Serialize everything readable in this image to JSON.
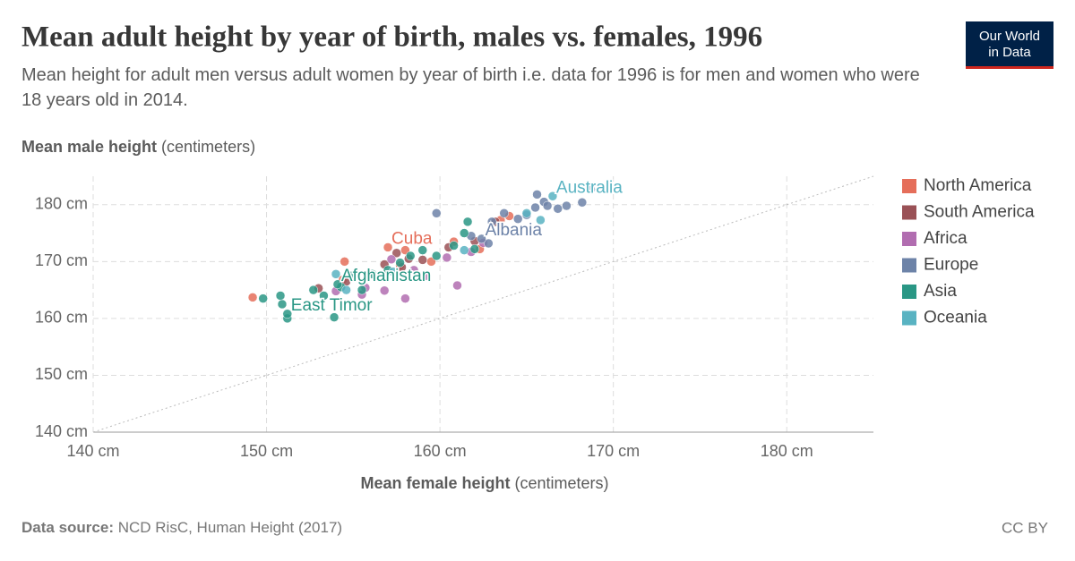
{
  "chart_data": {
    "type": "scatter",
    "title": "Mean adult height by year of birth, males vs. females, 1996",
    "subtitle": "Mean height for adult men versus adult women by year of birth i.e. data for 1996 is for men and women who were 18 years old in 2014.",
    "ylabel": {
      "main": "Mean male height",
      "unit": "(centimeters)"
    },
    "xlabel": {
      "main": "Mean female height",
      "unit": "(centimeters)"
    },
    "xlim": [
      140,
      185
    ],
    "ylim": [
      140,
      185
    ],
    "xticks": [
      {
        "value": 140,
        "label": "140 cm"
      },
      {
        "value": 150,
        "label": "150 cm"
      },
      {
        "value": 160,
        "label": "160 cm"
      },
      {
        "value": 170,
        "label": "170 cm"
      },
      {
        "value": 180,
        "label": "180 cm"
      }
    ],
    "yticks": [
      {
        "value": 140,
        "label": "140 cm"
      },
      {
        "value": 150,
        "label": "150 cm"
      },
      {
        "value": 160,
        "label": "160 cm"
      },
      {
        "value": 170,
        "label": "170 cm"
      },
      {
        "value": 180,
        "label": "180 cm"
      }
    ],
    "grid": true,
    "diagonal": true,
    "legend": "right",
    "series": [
      {
        "name": "North America",
        "color": "#e56e5a",
        "x": [
          149.2,
          154.5,
          154.4,
          157.7,
          158.0,
          159.5,
          160.8,
          162.3,
          163.5,
          164.0,
          157.0
        ],
        "y": [
          163.7,
          170.0,
          166.8,
          169.3,
          172.0,
          170.0,
          173.5,
          172.2,
          177.3,
          178.0,
          172.5
        ],
        "labels": [
          null,
          null,
          null,
          null,
          null,
          null,
          null,
          null,
          null,
          null,
          "Cuba"
        ]
      },
      {
        "name": "South America",
        "color": "#9a5156",
        "x": [
          153.0,
          154.6,
          156.8,
          157.5,
          158.2,
          159.0,
          160.5,
          162.0,
          163.2,
          157.8
        ],
        "y": [
          165.3,
          166.5,
          169.5,
          171.5,
          170.5,
          170.3,
          172.5,
          173.6,
          177.0,
          169.0
        ],
        "labels": [
          null,
          null,
          null,
          null,
          null,
          null,
          null,
          null,
          null,
          null
        ]
      },
      {
        "name": "Africa",
        "color": "#b16db0",
        "x": [
          154.0,
          155.5,
          156.8,
          158.0,
          158.5,
          159.2,
          160.4,
          161.0,
          161.8,
          162.5,
          157.2,
          155.7
        ],
        "y": [
          164.8,
          164.2,
          164.9,
          163.5,
          168.5,
          167.5,
          170.7,
          165.8,
          171.7,
          173.3,
          170.4,
          165.4
        ],
        "labels": [
          null,
          null,
          null,
          null,
          null,
          null,
          null,
          null,
          null,
          null,
          null,
          null
        ]
      },
      {
        "name": "Europe",
        "color": "#6d83a8",
        "x": [
          159.8,
          161.8,
          162.8,
          163.0,
          163.7,
          164.5,
          165.0,
          165.5,
          165.6,
          166.0,
          166.2,
          166.8,
          167.3,
          168.2,
          168.7,
          162.4
        ],
        "y": [
          178.5,
          174.5,
          173.2,
          177.0,
          178.5,
          177.5,
          178.2,
          179.5,
          181.8,
          180.5,
          179.8,
          179.3,
          179.8,
          180.4,
          182.7,
          174.0
        ],
        "labels": [
          null,
          null,
          null,
          null,
          null,
          null,
          null,
          null,
          null,
          null,
          null,
          null,
          null,
          null,
          null,
          "Albania"
        ]
      },
      {
        "name": "Asia",
        "color": "#2a9785",
        "x": [
          149.8,
          150.8,
          150.9,
          151.2,
          152.7,
          153.3,
          153.9,
          154.3,
          154.9,
          155.5,
          156.1,
          157.0,
          157.7,
          158.3,
          159.0,
          159.8,
          160.8,
          161.4,
          161.6,
          162.0,
          154.1,
          151.2
        ],
        "y": [
          163.5,
          164.0,
          162.5,
          160.0,
          165.0,
          164.0,
          160.2,
          165.5,
          167.5,
          165.0,
          167.8,
          168.5,
          169.8,
          171.0,
          172.0,
          171.0,
          172.8,
          175.0,
          177.0,
          172.2,
          166.0,
          160.8
        ],
        "labels": [
          null,
          null,
          null,
          null,
          null,
          null,
          null,
          null,
          null,
          null,
          null,
          null,
          null,
          null,
          null,
          null,
          null,
          null,
          null,
          null,
          "Afghanistan",
          "East Timor"
        ]
      },
      {
        "name": "Oceania",
        "color": "#59b3c2",
        "x": [
          154.0,
          154.6,
          157.3,
          161.4,
          165.0,
          165.8,
          166.5
        ],
        "y": [
          167.8,
          165.0,
          168.2,
          172.0,
          178.5,
          177.3,
          181.5
        ],
        "labels": [
          null,
          null,
          null,
          null,
          null,
          null,
          "Australia"
        ]
      }
    ],
    "source_label": "Data source:",
    "source": "NCD RisC, Human Height (2017)",
    "license": "CC BY",
    "logo": [
      "Our World",
      "in Data"
    ]
  }
}
